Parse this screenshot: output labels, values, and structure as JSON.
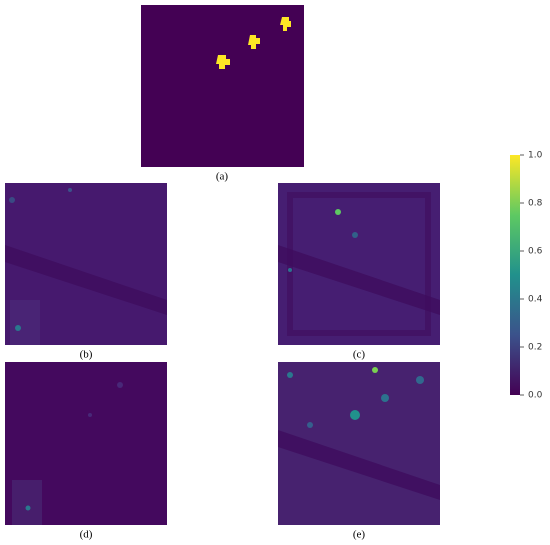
{
  "panels": [
    {
      "label": "(a)"
    },
    {
      "label": "(b)"
    },
    {
      "label": "(c)"
    },
    {
      "label": "(d)"
    },
    {
      "label": "(e)"
    }
  ],
  "colorbar": {
    "lim": [
      0,
      1
    ],
    "ticks": [
      {
        "value": 0,
        "label": "0.0"
      },
      0.2,
      0.4,
      0.6,
      0.8,
      {
        "value": 1,
        "label": "1.0"
      }
    ]
  }
}
